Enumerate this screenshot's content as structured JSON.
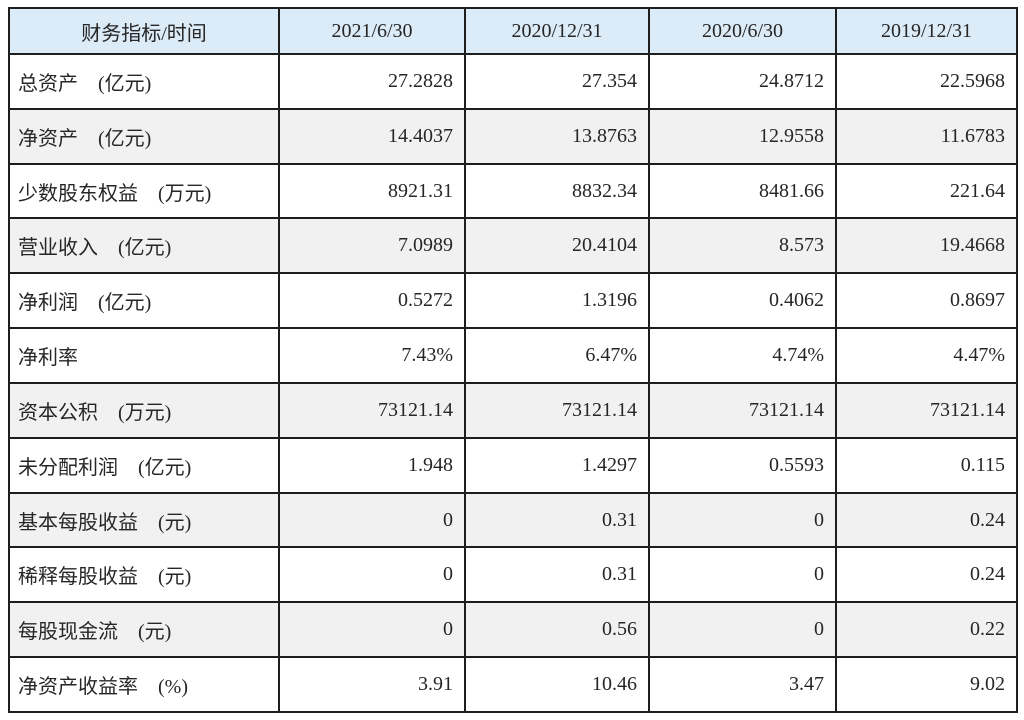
{
  "colors": {
    "page_bg": "#ffffff",
    "header_bg": "#dcebf8",
    "shaded_row_bg": "#f1f1f1",
    "border": "#1e1e1e",
    "text": "#262626"
  },
  "table": {
    "columns": [
      "财务指标/时间",
      "2021/6/30",
      "2020/12/31",
      "2020/6/30",
      "2019/12/31"
    ],
    "rows": [
      {
        "label": "总资产　(亿元)",
        "values": [
          "27.2828",
          "27.354",
          "24.8712",
          "22.5968"
        ],
        "shaded": false
      },
      {
        "label": "净资产　(亿元)",
        "values": [
          "14.4037",
          "13.8763",
          "12.9558",
          "11.6783"
        ],
        "shaded": true
      },
      {
        "label": "少数股东权益　(万元)",
        "values": [
          "8921.31",
          "8832.34",
          "8481.66",
          "221.64"
        ],
        "shaded": false
      },
      {
        "label": "营业收入　(亿元)",
        "values": [
          "7.0989",
          "20.4104",
          "8.573",
          "19.4668"
        ],
        "shaded": true
      },
      {
        "label": "净利润　(亿元)",
        "values": [
          "0.5272",
          "1.3196",
          "0.4062",
          "0.8697"
        ],
        "shaded": false
      },
      {
        "label": "净利率",
        "values": [
          "7.43%",
          "6.47%",
          "4.74%",
          "4.47%"
        ],
        "shaded": false
      },
      {
        "label": "资本公积　(万元)",
        "values": [
          "73121.14",
          "73121.14",
          "73121.14",
          "73121.14"
        ],
        "shaded": true
      },
      {
        "label": "未分配利润　(亿元)",
        "values": [
          "1.948",
          "1.4297",
          "0.5593",
          "0.115"
        ],
        "shaded": false
      },
      {
        "label": "基本每股收益　(元)",
        "values": [
          "0",
          "0.31",
          "0",
          "0.24"
        ],
        "shaded": true
      },
      {
        "label": "稀释每股收益　(元)",
        "values": [
          "0",
          "0.31",
          "0",
          "0.24"
        ],
        "shaded": false
      },
      {
        "label": "每股现金流　(元)",
        "values": [
          "0",
          "0.56",
          "0",
          "0.22"
        ],
        "shaded": true
      },
      {
        "label": "净资产收益率　(%)",
        "values": [
          "3.91",
          "10.46",
          "3.47",
          "9.02"
        ],
        "shaded": false
      }
    ]
  },
  "chart_data": {
    "type": "table",
    "title": "财务指标/时间",
    "categories": [
      "2021/6/30",
      "2020/12/31",
      "2020/6/30",
      "2019/12/31"
    ],
    "series": [
      {
        "name": "总资产 (亿元)",
        "values": [
          27.2828,
          27.354,
          24.8712,
          22.5968
        ]
      },
      {
        "name": "净资产 (亿元)",
        "values": [
          14.4037,
          13.8763,
          12.9558,
          11.6783
        ]
      },
      {
        "name": "少数股东权益 (万元)",
        "values": [
          8921.31,
          8832.34,
          8481.66,
          221.64
        ]
      },
      {
        "name": "营业收入 (亿元)",
        "values": [
          7.0989,
          20.4104,
          8.573,
          19.4668
        ]
      },
      {
        "name": "净利润 (亿元)",
        "values": [
          0.5272,
          1.3196,
          0.4062,
          0.8697
        ]
      },
      {
        "name": "净利率 (%)",
        "values": [
          7.43,
          6.47,
          4.74,
          4.47
        ]
      },
      {
        "name": "资本公积 (万元)",
        "values": [
          73121.14,
          73121.14,
          73121.14,
          73121.14
        ]
      },
      {
        "name": "未分配利润 (亿元)",
        "values": [
          1.948,
          1.4297,
          0.5593,
          0.115
        ]
      },
      {
        "name": "基本每股收益 (元)",
        "values": [
          0,
          0.31,
          0,
          0.24
        ]
      },
      {
        "name": "稀释每股收益 (元)",
        "values": [
          0,
          0.31,
          0,
          0.24
        ]
      },
      {
        "name": "每股现金流 (元)",
        "values": [
          0,
          0.56,
          0,
          0.22
        ]
      },
      {
        "name": "净资产收益率 (%)",
        "values": [
          3.91,
          10.46,
          3.47,
          9.02
        ]
      }
    ],
    "layout": {
      "grid": true,
      "header_background": "#dcebf8",
      "zebra_shading": "rows 2,4,7,9,11"
    }
  }
}
